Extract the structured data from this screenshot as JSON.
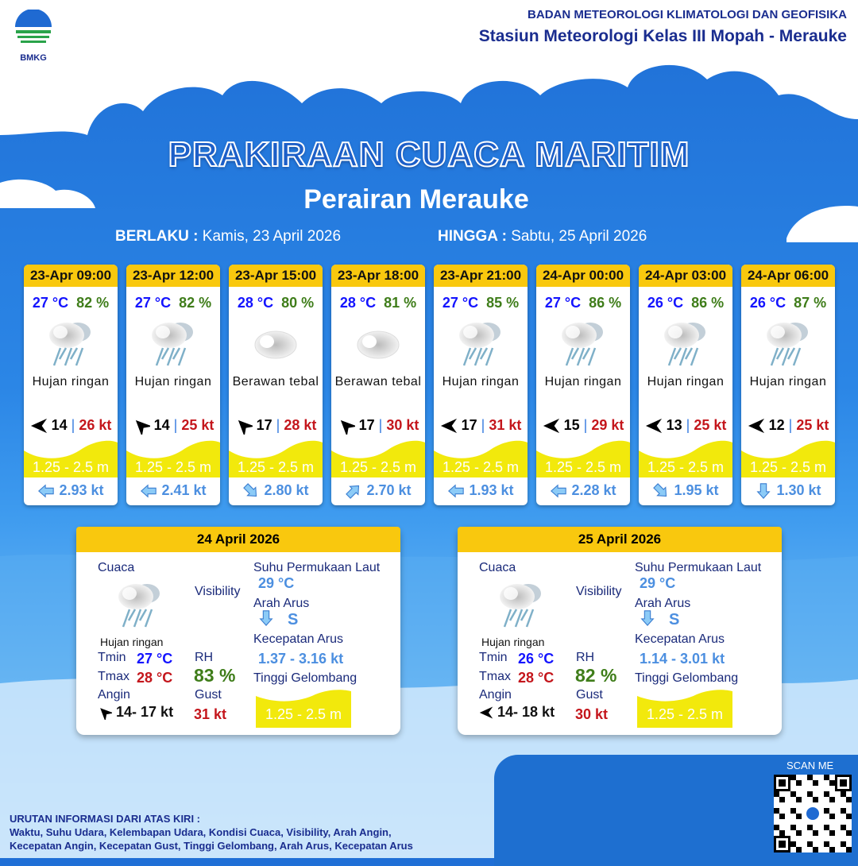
{
  "header": {
    "logo_text": "BMKG",
    "agency": "BADAN METEOROLOGI KLIMATOLOGI DAN GEOFISIKA",
    "station": "Stasiun Meteorologi Kelas III Mopah - Merauke"
  },
  "title": "PRAKIRAAN CUACA MARITIM",
  "subtitle": "Perairan Merauke",
  "validity": {
    "from_label": "BERLAKU :",
    "from": "Kamis, 23 April 2026",
    "to_label": "HINGGA :",
    "to": "Sabtu, 25 April 2026"
  },
  "colors": {
    "header_yellow": "#f9c80e",
    "temp": "#1414ff",
    "humidity": "#3f7d1a",
    "gust": "#c4161c",
    "current": "#4c8fe0",
    "wave": "#f2e90c"
  },
  "forecasts": [
    {
      "time": "23-Apr 09:00",
      "temp": "27 °C",
      "rh": "82 %",
      "icon": "rain-cloud-icon",
      "cond": "Hujan ringan",
      "wind_dir": "arrow-left",
      "wind": "14",
      "sep": "|",
      "gust": "26 kt",
      "wave": "1.25 - 2.5 m",
      "cur_dir": "arrow-left",
      "cur": "2.93 kt"
    },
    {
      "time": "23-Apr 12:00",
      "temp": "27 °C",
      "rh": "82 %",
      "icon": "rain-cloud-icon",
      "cond": "Hujan ringan",
      "wind_dir": "arrow-up-left",
      "wind": "14",
      "sep": "|",
      "gust": "25 kt",
      "wave": "1.25 - 2.5 m",
      "cur_dir": "arrow-left",
      "cur": "2.41 kt"
    },
    {
      "time": "23-Apr 15:00",
      "temp": "28 °C",
      "rh": "80 %",
      "icon": "cloud-icon",
      "cond": "Berawan tebal",
      "wind_dir": "arrow-up-left",
      "wind": "17",
      "sep": "|",
      "gust": "28 kt",
      "wave": "1.25 - 2.5 m",
      "cur_dir": "arrow-down-right",
      "cur": "2.80 kt"
    },
    {
      "time": "23-Apr 18:00",
      "temp": "28 °C",
      "rh": "81 %",
      "icon": "cloud-icon",
      "cond": "Berawan tebal",
      "wind_dir": "arrow-up-left",
      "wind": "17",
      "sep": "|",
      "gust": "30 kt",
      "wave": "1.25 - 2.5 m",
      "cur_dir": "arrow-up-right",
      "cur": "2.70 kt"
    },
    {
      "time": "23-Apr 21:00",
      "temp": "27 °C",
      "rh": "85 %",
      "icon": "rain-cloud-icon",
      "cond": "Hujan ringan",
      "wind_dir": "arrow-left",
      "wind": "17",
      "sep": "|",
      "gust": "31 kt",
      "wave": "1.25 - 2.5 m",
      "cur_dir": "arrow-left",
      "cur": "1.93 kt"
    },
    {
      "time": "24-Apr 00:00",
      "temp": "27 °C",
      "rh": "86 %",
      "icon": "rain-cloud-icon",
      "cond": "Hujan ringan",
      "wind_dir": "arrow-left",
      "wind": "15",
      "sep": "|",
      "gust": "29 kt",
      "wave": "1.25 - 2.5 m",
      "cur_dir": "arrow-left",
      "cur": "2.28 kt"
    },
    {
      "time": "24-Apr 03:00",
      "temp": "26 °C",
      "rh": "86 %",
      "icon": "rain-cloud-icon",
      "cond": "Hujan ringan",
      "wind_dir": "arrow-left",
      "wind": "13",
      "sep": "|",
      "gust": "25 kt",
      "wave": "1.25 - 2.5 m",
      "cur_dir": "arrow-down-right",
      "cur": "1.95 kt"
    },
    {
      "time": "24-Apr 06:00",
      "temp": "26 °C",
      "rh": "87 %",
      "icon": "rain-cloud-icon",
      "cond": "Hujan ringan",
      "wind_dir": "arrow-left",
      "wind": "12",
      "sep": "|",
      "gust": "25 kt",
      "wave": "1.25 - 2.5 m",
      "cur_dir": "arrow-down",
      "cur": "1.30 kt"
    }
  ],
  "labels": {
    "cuaca": "Cuaca",
    "visibility": "Visibility",
    "sst": "Suhu Permukaan Laut",
    "arah_arus": "Arah Arus",
    "kec_arus": "Kecepatan Arus",
    "tinggi": "Tinggi Gelombang",
    "tmin": "Tmin",
    "tmax": "Tmax",
    "rh": "RH",
    "angin": "Angin",
    "gust": "Gust"
  },
  "daily": [
    {
      "date": "24 April 2026",
      "cond": "Hujan ringan",
      "tmin": "27 °C",
      "tmax": "28 °C",
      "rh": "83 %",
      "wind_dir": "arrow-up-left",
      "wind": "14- 17 kt",
      "gust": "31 kt",
      "visibility": "",
      "sst": "29 °C",
      "cur_dir": "S",
      "cur": "1.37 - 3.16 kt",
      "wave": "1.25 - 2.5 m"
    },
    {
      "date": "25 April 2026",
      "cond": "Hujan ringan",
      "tmin": "26 °C",
      "tmax": "28 °C",
      "rh": "82 %",
      "wind_dir": "arrow-left",
      "wind": "14- 18 kt",
      "gust": "30 kt",
      "visibility": "",
      "sst": "29 °C",
      "cur_dir": "S",
      "cur": "1.14 - 3.01 kt",
      "wave": "1.25 - 2.5 m"
    }
  ],
  "footer": {
    "line1": "URUTAN INFORMASI DARI ATAS KIRI :",
    "line2": "Waktu, Suhu Udara, Kelembapan Udara, Kondisi Cuaca, Visibility, Arah Angin,",
    "line3": "Kecepatan Angin, Kecepatan Gust, Tinggi Gelombang, Arah Arus, Kecepatan Arus"
  },
  "qr": {
    "label": "SCAN ME"
  }
}
